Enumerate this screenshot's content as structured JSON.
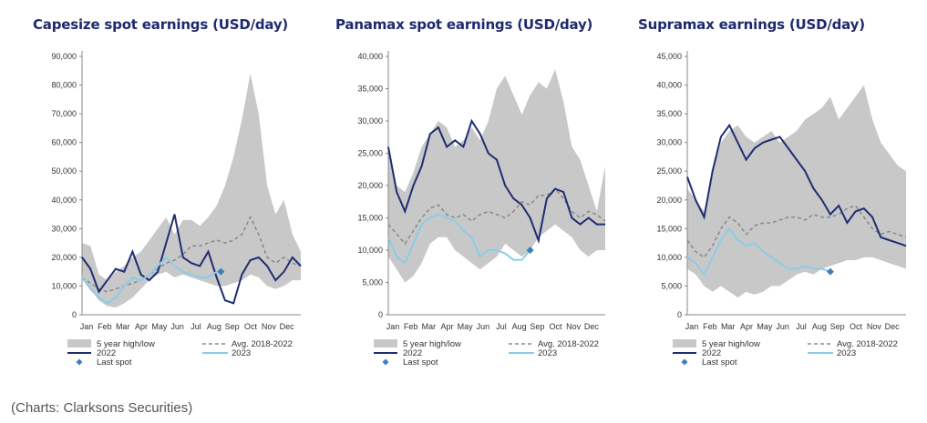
{
  "source": "(Charts: Clarksons Securities)",
  "legend": {
    "band": "5 year high/low",
    "avg": "Avg. 2018-2022",
    "y2022": "2022",
    "y2023": "2023",
    "last": "Last spot"
  },
  "colors": {
    "band": "#c8c8c8",
    "avg": "#8c8c8c",
    "y2022": "#1f2d73",
    "y2023": "#8ccbe8",
    "last": "#3d7fb5",
    "title": "#1e2a6e"
  },
  "chart_data": [
    {
      "type": "area",
      "title": "Capesize spot earnings (USD/day)",
      "ylim": [
        0,
        90000
      ],
      "yticks": [
        0,
        10000,
        20000,
        30000,
        40000,
        50000,
        60000,
        70000,
        80000,
        90000
      ],
      "ytick_labels": [
        "0",
        "10,000",
        "20,000",
        "30,000",
        "40,000",
        "50,000",
        "60,000",
        "70,000",
        "80,000",
        "90,000"
      ],
      "xticks": [
        0,
        4.3,
        8.6,
        13,
        17.3,
        21.6,
        26,
        30.3,
        34.6,
        39,
        43.3,
        47.6
      ],
      "xtick_labels": [
        "Jan",
        "Feb",
        "Mar",
        "Apr",
        "May",
        "Jun",
        "Jul",
        "Aug",
        "Sep",
        "Oct",
        "Nov",
        "Dec"
      ],
      "x": [
        0,
        2,
        4,
        6,
        8,
        10,
        12,
        14,
        16,
        18,
        20,
        22,
        24,
        26,
        28,
        30,
        32,
        34,
        36,
        38,
        40,
        42,
        44,
        46,
        48,
        50,
        52
      ],
      "high": [
        25000,
        24000,
        14000,
        12000,
        15000,
        17000,
        20000,
        22000,
        26000,
        30000,
        34000,
        28000,
        33000,
        33000,
        31000,
        34000,
        38000,
        45000,
        55000,
        68000,
        84000,
        70000,
        45000,
        35000,
        40000,
        28000,
        22000
      ],
      "low": [
        14000,
        9000,
        5000,
        3000,
        2500,
        4000,
        6000,
        9000,
        12000,
        14000,
        15000,
        13000,
        14000,
        13000,
        12000,
        11000,
        10000,
        10000,
        11000,
        12000,
        14000,
        13000,
        10000,
        9000,
        10000,
        12000,
        12000
      ],
      "avg": [
        13000,
        11000,
        9000,
        8000,
        9000,
        10000,
        11000,
        12000,
        14000,
        16000,
        18000,
        19000,
        21000,
        24000,
        24000,
        25000,
        26000,
        25000,
        26000,
        28000,
        34000,
        28000,
        20000,
        18000,
        20000,
        18000,
        17000
      ],
      "y2022": [
        20000,
        16000,
        8000,
        12000,
        16000,
        15000,
        22000,
        14000,
        12000,
        15000,
        25000,
        35000,
        20000,
        18000,
        17000,
        22000,
        13000,
        5000,
        4000,
        14000,
        19000,
        20000,
        17000,
        12000,
        15000,
        20000,
        17000
      ],
      "y2023": [
        13000,
        9000,
        6000,
        4000,
        6000,
        10000,
        13000,
        12000,
        14000,
        17000,
        20000,
        17000,
        15000,
        14000,
        13000,
        13000,
        15000
      ],
      "last": {
        "x": 33,
        "y": 15000
      }
    },
    {
      "type": "area",
      "title": "Panamax spot earnings (USD/day)",
      "ylim": [
        0,
        40000
      ],
      "yticks": [
        0,
        5000,
        10000,
        15000,
        20000,
        25000,
        30000,
        35000,
        40000
      ],
      "ytick_labels": [
        "0",
        "5,000",
        "10,000",
        "15,000",
        "20,000",
        "25,000",
        "30,000",
        "35,000",
        "40,000"
      ],
      "xticks": [
        0,
        4.3,
        8.6,
        13,
        17.3,
        21.6,
        26,
        30.3,
        34.6,
        39,
        43.3,
        47.6
      ],
      "xtick_labels": [
        "Jan",
        "Feb",
        "Mar",
        "Apr",
        "May",
        "Jun",
        "Jul",
        "Aug",
        "Sep",
        "Oct",
        "Nov",
        "Dec"
      ],
      "x": [
        0,
        2,
        4,
        6,
        8,
        10,
        12,
        14,
        16,
        18,
        20,
        22,
        24,
        26,
        28,
        30,
        32,
        34,
        36,
        38,
        40,
        42,
        44,
        46,
        48,
        50,
        52
      ],
      "high": [
        26000,
        20000,
        19000,
        22000,
        26000,
        28000,
        30000,
        29000,
        26000,
        27000,
        29000,
        27000,
        30000,
        35000,
        37000,
        34000,
        31000,
        34000,
        36000,
        35000,
        38000,
        33000,
        26000,
        24000,
        20000,
        16000,
        23000
      ],
      "low": [
        9000,
        7000,
        5000,
        6000,
        8000,
        11000,
        12000,
        12000,
        10000,
        9000,
        8000,
        7000,
        8000,
        9000,
        11000,
        10000,
        9000,
        10000,
        12000,
        13000,
        14000,
        13000,
        12000,
        10000,
        9000,
        10000,
        10000
      ],
      "avg": [
        14000,
        12500,
        11000,
        13000,
        15000,
        16500,
        17000,
        15500,
        15000,
        15500,
        14500,
        15500,
        16000,
        15500,
        15000,
        16000,
        17500,
        17000,
        18500,
        18500,
        19500,
        18000,
        16000,
        15000,
        16000,
        15500,
        14500
      ],
      "y2022": [
        26000,
        19000,
        16000,
        20000,
        23000,
        28000,
        29000,
        26000,
        27000,
        26000,
        30000,
        28000,
        25000,
        24000,
        20000,
        18000,
        17000,
        15000,
        11500,
        18000,
        19500,
        19000,
        15000,
        14000,
        15000,
        14000,
        14000
      ],
      "y2023": [
        12000,
        9000,
        8000,
        11000,
        14000,
        15000,
        15500,
        15000,
        14500,
        13000,
        12000,
        9000,
        10000,
        10000,
        9500,
        8500,
        8500,
        10000
      ],
      "last": {
        "x": 34,
        "y": 10000
      }
    },
    {
      "type": "area",
      "title": "Supramax earnings (USD/day)",
      "ylim": [
        0,
        45000
      ],
      "yticks": [
        0,
        5000,
        10000,
        15000,
        20000,
        25000,
        30000,
        35000,
        40000,
        45000
      ],
      "ytick_labels": [
        "0",
        "5,000",
        "10,000",
        "15,000",
        "20,000",
        "25,000",
        "30,000",
        "35,000",
        "40,000",
        "45,000"
      ],
      "xticks": [
        0,
        4.3,
        8.6,
        13,
        17.3,
        21.6,
        26,
        30.3,
        34.6,
        39,
        43.3,
        47.6
      ],
      "xtick_labels": [
        "Jan",
        "Feb",
        "Mar",
        "Apr",
        "May",
        "Jun",
        "Jul",
        "Aug",
        "Sep",
        "Oct",
        "Nov",
        "Dec"
      ],
      "x": [
        0,
        2,
        4,
        6,
        8,
        10,
        12,
        14,
        16,
        18,
        20,
        22,
        24,
        26,
        28,
        30,
        32,
        34,
        36,
        38,
        40,
        42,
        44,
        46,
        48,
        50,
        52
      ],
      "high": [
        22000,
        20000,
        18000,
        25000,
        30000,
        32000,
        33000,
        31000,
        30000,
        31000,
        32000,
        30000,
        31000,
        32000,
        34000,
        35000,
        36000,
        38000,
        34000,
        36000,
        38000,
        40000,
        34000,
        30000,
        28000,
        26000,
        25000
      ],
      "low": [
        8000,
        7000,
        5000,
        4000,
        5000,
        4000,
        3000,
        4000,
        3500,
        4000,
        5000,
        5000,
        6000,
        7000,
        7500,
        7000,
        8000,
        8500,
        9000,
        9500,
        9500,
        10000,
        10000,
        9500,
        9000,
        8500,
        8000
      ],
      "avg": [
        13000,
        11000,
        10000,
        12000,
        15000,
        17000,
        16000,
        14000,
        15500,
        16000,
        16000,
        16500,
        17000,
        17000,
        16500,
        17500,
        17000,
        17000,
        17500,
        18500,
        19000,
        17000,
        15000,
        14000,
        14500,
        14000,
        13500
      ],
      "y2022": [
        24000,
        20000,
        17000,
        25000,
        31000,
        33000,
        30000,
        27000,
        29000,
        30000,
        30500,
        31000,
        29000,
        27000,
        25000,
        22000,
        20000,
        17500,
        19000,
        16000,
        18000,
        18500,
        17000,
        13500,
        13000,
        12500,
        12000
      ],
      "y2023": [
        10000,
        9000,
        7000,
        10000,
        13000,
        15000,
        13000,
        12000,
        12500,
        11000,
        10000,
        9000,
        8000,
        8000,
        8500,
        8000,
        8000,
        7500
      ],
      "last": {
        "x": 34,
        "y": 7500
      }
    }
  ]
}
